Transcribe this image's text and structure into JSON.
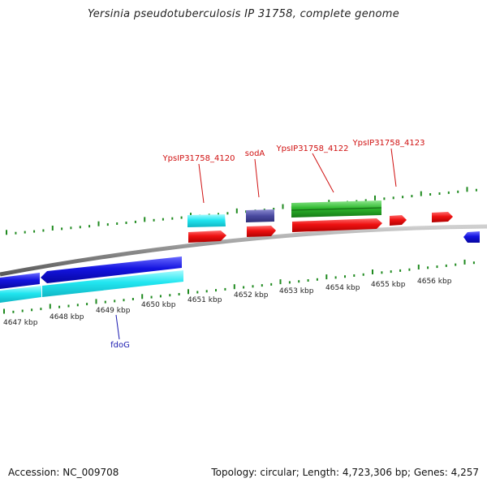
{
  "title": "Yersinia pseudotuberculosis IP 31758, complete genome",
  "footer": {
    "accession": "Accession: NC_009708",
    "stats": "Topology: circular; Length: 4,723,306 bp; Genes: 4,257"
  },
  "colors": {
    "tick": "#1f8a1f",
    "backbone": "#8c8c8c",
    "forward_label": "#d01010",
    "reverse_label": "#1a1ab0",
    "cds_red": "#ee1111",
    "cds_cyan": "#22e6f0",
    "cds_blue": "#1414e0",
    "cds_navy": "#4a4aa0",
    "cds_green": "#2fb82f"
  },
  "scale": {
    "unit": "kbp",
    "labels": [
      "4647 kbp",
      "4648 kbp",
      "4649 kbp",
      "4650 kbp",
      "4651 kbp",
      "4652 kbp",
      "4653 kbp",
      "4654 kbp",
      "4655 kbp",
      "4656 kbp"
    ]
  },
  "gene_labels": [
    {
      "name": "YpsIP31758_4120",
      "color": "red"
    },
    {
      "name": "sodA",
      "color": "red"
    },
    {
      "name": "YpsIP31758_4122",
      "color": "red"
    },
    {
      "name": "YpsIP31758_4123",
      "color": "red"
    },
    {
      "name": "fdoG",
      "color": "blue"
    }
  ]
}
